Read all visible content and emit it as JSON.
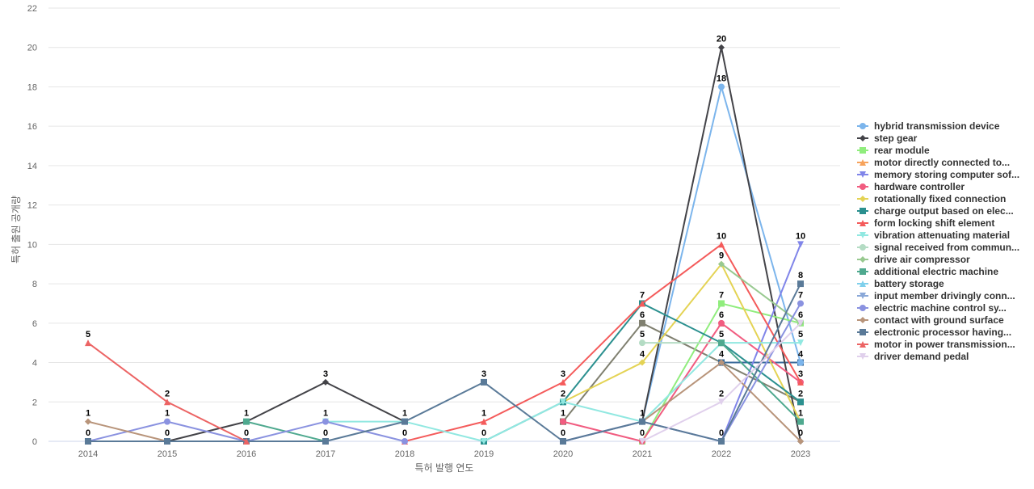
{
  "chart_data": {
    "type": "line",
    "title": "",
    "xlabel": "특허 발행 연도",
    "ylabel": "특허 출원 공개량",
    "categories": [
      "2014",
      "2015",
      "2016",
      "2017",
      "2018",
      "2019",
      "2020",
      "2021",
      "2022",
      "2023"
    ],
    "ylim": [
      0,
      22
    ],
    "yticks": [
      0,
      2,
      4,
      6,
      8,
      10,
      12,
      14,
      16,
      18,
      20,
      22
    ],
    "grid": true,
    "legend_position": "right",
    "series": [
      {
        "name": "hybrid transmission device",
        "color": "#7cb5ec",
        "marker": "circle",
        "values": [
          null,
          null,
          null,
          null,
          null,
          null,
          null,
          1,
          18,
          4
        ]
      },
      {
        "name": "step gear",
        "color": "#434348",
        "marker": "diamond",
        "values": [
          0,
          0,
          1,
          3,
          1,
          null,
          null,
          1,
          20,
          0
        ]
      },
      {
        "name": "rear module",
        "color": "#90ed7d",
        "marker": "square",
        "values": [
          null,
          null,
          null,
          null,
          null,
          null,
          null,
          0,
          7,
          6
        ]
      },
      {
        "name": "motor directly connected to...",
        "color": "#f7a35c",
        "marker": "triangle",
        "values": [
          null,
          null,
          null,
          null,
          null,
          null,
          null,
          null,
          null,
          null
        ]
      },
      {
        "name": "memory storing computer sof...",
        "color": "#8085e9",
        "marker": "triangle-down",
        "values": [
          null,
          null,
          null,
          null,
          null,
          null,
          null,
          null,
          0,
          10
        ]
      },
      {
        "name": "hardware controller",
        "color": "#f15c80",
        "marker": "circle",
        "values": [
          null,
          null,
          null,
          null,
          null,
          null,
          1,
          0,
          6,
          3
        ]
      },
      {
        "name": "rotationally fixed connection",
        "color": "#e4d354",
        "marker": "diamond",
        "values": [
          null,
          null,
          null,
          null,
          null,
          null,
          2,
          4,
          9,
          1
        ]
      },
      {
        "name": "charge output based on elec...",
        "color": "#2b908f",
        "marker": "square",
        "values": [
          null,
          null,
          null,
          null,
          null,
          0,
          2,
          7,
          5,
          2
        ]
      },
      {
        "name": "form locking shift element",
        "color": "#f45b5b",
        "marker": "triangle",
        "values": [
          null,
          null,
          null,
          null,
          0,
          1,
          3,
          7,
          10,
          3
        ]
      },
      {
        "name": "vibration attenuating material",
        "color": "#91e8e1",
        "marker": "triangle-down",
        "values": [
          null,
          null,
          null,
          1,
          1,
          0,
          2,
          1,
          5,
          5
        ]
      },
      {
        "name": "signal received from commun...",
        "color": "#b4dcc4",
        "marker": "circle",
        "values": [
          null,
          null,
          null,
          null,
          null,
          null,
          null,
          5,
          5,
          null
        ]
      },
      {
        "name": "drive air compressor",
        "color": "#98c990",
        "marker": "diamond",
        "values": [
          null,
          null,
          null,
          null,
          null,
          null,
          null,
          null,
          9,
          6
        ]
      },
      {
        "name": "additional electric machine",
        "color": "#4fa98f",
        "marker": "square",
        "values": [
          null,
          null,
          1,
          0,
          null,
          null,
          null,
          null,
          5,
          1
        ]
      },
      {
        "name": "battery storage",
        "color": "#7fd0ec",
        "marker": "triangle",
        "values": [
          null,
          null,
          null,
          null,
          null,
          null,
          null,
          null,
          null,
          null
        ]
      },
      {
        "name": "input member drivingly conn...",
        "color": "#8aa8d8",
        "marker": "triangle-down",
        "values": [
          null,
          null,
          null,
          null,
          null,
          null,
          null,
          null,
          null,
          null
        ]
      },
      {
        "name": "electric machine control sy...",
        "color": "#8a92e0",
        "marker": "circle",
        "values": [
          0,
          1,
          0,
          1,
          0,
          null,
          0,
          1,
          0,
          7
        ]
      },
      {
        "name": "contact with ground surface",
        "color": "#b8947a",
        "marker": "diamond",
        "values": [
          1,
          0,
          null,
          null,
          null,
          null,
          null,
          1,
          4,
          0
        ]
      },
      {
        "name": "electronic processor having...",
        "color": "#5a7a98",
        "marker": "square",
        "values": [
          0,
          0,
          0,
          0,
          1,
          3,
          0,
          1,
          0,
          8
        ]
      },
      {
        "name": "motor in power transmission...",
        "color": "#ec6464",
        "marker": "triangle",
        "values": [
          5,
          2,
          0,
          null,
          null,
          null,
          null,
          null,
          null,
          null
        ]
      },
      {
        "name": "driver demand pedal",
        "color": "#e0d0ec",
        "marker": "triangle-down",
        "values": [
          null,
          null,
          null,
          null,
          null,
          null,
          null,
          0,
          2,
          6
        ]
      }
    ],
    "extra_segments": [
      {
        "color": "#b63c3c",
        "marker": "square",
        "values": [
          null,
          null,
          null,
          null,
          null,
          null,
          1,
          null,
          null,
          null
        ]
      },
      {
        "color": "#808070",
        "marker": "square",
        "values": [
          null,
          null,
          null,
          null,
          null,
          null,
          1,
          6,
          4,
          2
        ]
      },
      {
        "color": "#3a6a9a",
        "marker": "square",
        "values": [
          null,
          null,
          null,
          null,
          null,
          null,
          null,
          null,
          4,
          4
        ]
      },
      {
        "color": "#40b0c8",
        "marker": "square",
        "values": [
          null,
          null,
          null,
          null,
          null,
          null,
          2,
          null,
          null,
          null
        ]
      },
      {
        "color": "#d44b4b",
        "marker": "triangle",
        "values": [
          null,
          null,
          null,
          null,
          null,
          null,
          null,
          null,
          6,
          null
        ]
      },
      {
        "color": "#1f4f7f",
        "marker": "square",
        "values": [
          null,
          null,
          null,
          null,
          null,
          null,
          null,
          null,
          0,
          null
        ]
      },
      {
        "color": "#4f9f8f",
        "marker": "square",
        "values": [
          null,
          null,
          null,
          null,
          null,
          null,
          null,
          null,
          null,
          2
        ]
      },
      {
        "color": "#8a92e0",
        "marker": "circle",
        "values": [
          null,
          null,
          null,
          null,
          null,
          null,
          null,
          null,
          null,
          6
        ]
      },
      {
        "color": "#ec6464",
        "marker": "triangle",
        "values": [
          null,
          null,
          null,
          null,
          null,
          null,
          null,
          null,
          null,
          2
        ]
      }
    ],
    "data_labels": [
      {
        "x": "2014",
        "y": 5,
        "text": "5"
      },
      {
        "x": "2014",
        "y": 1,
        "text": "1"
      },
      {
        "x": "2014",
        "y": 0,
        "text": "0"
      },
      {
        "x": "2015",
        "y": 2,
        "text": "2"
      },
      {
        "x": "2015",
        "y": 1,
        "text": "1"
      },
      {
        "x": "2015",
        "y": 0,
        "text": "0"
      },
      {
        "x": "2016",
        "y": 1,
        "text": "1"
      },
      {
        "x": "2016",
        "y": 0,
        "text": "0"
      },
      {
        "x": "2017",
        "y": 3,
        "text": "3"
      },
      {
        "x": "2017",
        "y": 1,
        "text": "1"
      },
      {
        "x": "2017",
        "y": 0,
        "text": "0"
      },
      {
        "x": "2018",
        "y": 1,
        "text": "1"
      },
      {
        "x": "2018",
        "y": 0,
        "text": "0"
      },
      {
        "x": "2019",
        "y": 3,
        "text": "3"
      },
      {
        "x": "2019",
        "y": 1,
        "text": "1"
      },
      {
        "x": "2019",
        "y": 0,
        "text": "0"
      },
      {
        "x": "2020",
        "y": 3,
        "text": "3"
      },
      {
        "x": "2020",
        "y": 2,
        "text": "2"
      },
      {
        "x": "2020",
        "y": 1,
        "text": "1"
      },
      {
        "x": "2020",
        "y": 0,
        "text": "0"
      },
      {
        "x": "2021",
        "y": 7,
        "text": "7"
      },
      {
        "x": "2021",
        "y": 6,
        "text": "6"
      },
      {
        "x": "2021",
        "y": 5,
        "text": "5"
      },
      {
        "x": "2021",
        "y": 4,
        "text": "4"
      },
      {
        "x": "2021",
        "y": 1,
        "text": "1"
      },
      {
        "x": "2021",
        "y": 0,
        "text": "0"
      },
      {
        "x": "2022",
        "y": 20,
        "text": "20"
      },
      {
        "x": "2022",
        "y": 18,
        "text": "18"
      },
      {
        "x": "2022",
        "y": 10,
        "text": "10"
      },
      {
        "x": "2022",
        "y": 9,
        "text": "9"
      },
      {
        "x": "2022",
        "y": 7,
        "text": "7"
      },
      {
        "x": "2022",
        "y": 6,
        "text": "6"
      },
      {
        "x": "2022",
        "y": 5,
        "text": "5"
      },
      {
        "x": "2022",
        "y": 4,
        "text": "4"
      },
      {
        "x": "2022",
        "y": 2,
        "text": "2"
      },
      {
        "x": "2022",
        "y": 0,
        "text": "0"
      },
      {
        "x": "2023",
        "y": 10,
        "text": "10"
      },
      {
        "x": "2023",
        "y": 8,
        "text": "8"
      },
      {
        "x": "2023",
        "y": 7,
        "text": "7"
      },
      {
        "x": "2023",
        "y": 6,
        "text": "6"
      },
      {
        "x": "2023",
        "y": 5,
        "text": "5"
      },
      {
        "x": "2023",
        "y": 4,
        "text": "4"
      },
      {
        "x": "2023",
        "y": 3,
        "text": "3"
      },
      {
        "x": "2023",
        "y": 2,
        "text": "2"
      },
      {
        "x": "2023",
        "y": 1,
        "text": "1"
      },
      {
        "x": "2023",
        "y": 0,
        "text": "0"
      }
    ]
  }
}
